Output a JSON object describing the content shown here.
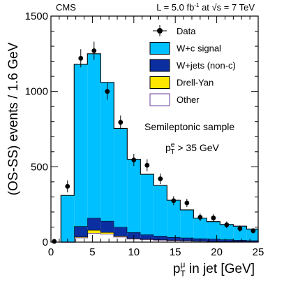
{
  "chart_data": {
    "type": "bar",
    "header_left": "CMS",
    "header_lumi": "L = 5.0 fb",
    "header_lumi_sup": "-1",
    "header_energy_pre": " at ",
    "header_energy_sqrt": "√s",
    "header_energy_post": " = 7 TeV",
    "ylabel": "(OS-SS) events / 1.6 GeV",
    "xlabel_p": "p",
    "xlabel_sup": "μ",
    "xlabel_sub": "T",
    "xlabel_rest": " in jet [GeV]",
    "annotation_sample": "Semileptonic sample",
    "annotation_cut_p": "p",
    "annotation_cut_sup": "e",
    "annotation_cut_sub": "T",
    "annotation_cut_rest": " > 35 GeV",
    "xlim": [
      0,
      25
    ],
    "ylim": [
      0,
      1500
    ],
    "x_ticks": [
      0,
      5,
      10,
      15,
      20,
      25
    ],
    "y_ticks": [
      0,
      500,
      1000,
      1500
    ],
    "bin_edges": [
      1.2,
      2.8,
      4.4,
      6.0,
      7.6,
      9.2,
      10.8,
      12.4,
      14.0,
      15.6,
      17.2,
      18.8,
      20.4,
      22.0,
      23.6,
      25.0
    ],
    "stack": [
      {
        "name": "Other",
        "color": "#ffffff",
        "edge": "#6a3d9a",
        "values": [
          0,
          30,
          60,
          55,
          35,
          22,
          18,
          15,
          12,
          10,
          8,
          6,
          5,
          4,
          3
        ]
      },
      {
        "name": "Drell-Yan",
        "color": "#ffe600",
        "edge": "#000000",
        "values": [
          0,
          5,
          20,
          10,
          5,
          3,
          2,
          1,
          1,
          1,
          0,
          0,
          0,
          0,
          0
        ]
      },
      {
        "name": "W+jets (non-c)",
        "color": "#0b2fa0",
        "edge": "#000000",
        "values": [
          0,
          70,
          80,
          75,
          60,
          40,
          30,
          25,
          20,
          18,
          16,
          15,
          12,
          10,
          8
        ]
      },
      {
        "name": "W+c signal",
        "color": "#00c0ff",
        "edge": "#000000",
        "values": [
          310,
          1075,
          1090,
          920,
          655,
          485,
          400,
          335,
          245,
          185,
          135,
          115,
          100,
          92,
          76
        ]
      }
    ],
    "data_series": {
      "name": "Data",
      "x": [
        0.4,
        2.0,
        3.6,
        5.2,
        6.8,
        8.4,
        10.0,
        11.6,
        13.2,
        14.8,
        16.4,
        18.0,
        19.6,
        21.2,
        22.8,
        24.4
      ],
      "y": [
        5,
        370,
        1220,
        1270,
        1000,
        795,
        545,
        510,
        420,
        275,
        260,
        165,
        160,
        115,
        90,
        75
      ],
      "err": [
        3,
        40,
        60,
        60,
        55,
        45,
        40,
        40,
        35,
        30,
        28,
        25,
        25,
        22,
        20,
        18
      ]
    },
    "legend": [
      {
        "label": "Data",
        "kind": "marker"
      },
      {
        "label": "W+c signal",
        "kind": "box",
        "color": "#00c0ff"
      },
      {
        "label": "W+jets (non-c)",
        "kind": "box",
        "color": "#0b2fa0"
      },
      {
        "label": "Drell-Yan",
        "kind": "box",
        "color": "#ffe600"
      },
      {
        "label": "Other",
        "kind": "box",
        "color": "#ffffff",
        "edge": "#6a3d9a"
      }
    ],
    "legend_position": "top-right",
    "grid": false
  }
}
